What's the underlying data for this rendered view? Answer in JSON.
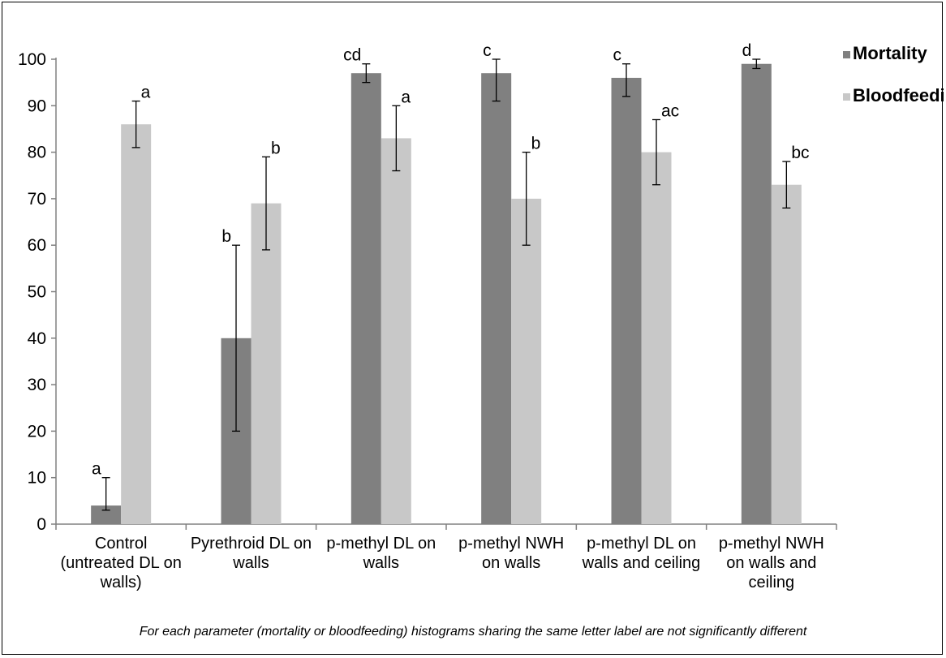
{
  "chart_data": {
    "type": "bar",
    "title": "",
    "xlabel": "",
    "ylabel": "",
    "ylim": [
      0,
      100
    ],
    "yticks": [
      0,
      10,
      20,
      30,
      40,
      50,
      60,
      70,
      80,
      90,
      100
    ],
    "grid": false,
    "legend_position": "top-right",
    "categories": [
      [
        "Control",
        "(untreated DL on",
        "walls)"
      ],
      [
        "Pyrethroid DL on",
        "walls"
      ],
      [
        "p-methyl  DL  on",
        "walls"
      ],
      [
        "p-methyl NWH",
        "on walls"
      ],
      [
        "p-methyl DL on",
        "walls and ceiling"
      ],
      [
        "p-methyl NWH",
        "on walls and",
        "ceiling"
      ]
    ],
    "series": [
      {
        "name": "Mortality",
        "color": "#808080",
        "values": [
          4,
          40,
          97,
          97,
          96,
          99
        ],
        "err_low": [
          3,
          20,
          95,
          91,
          92,
          98
        ],
        "err_high": [
          10,
          60,
          99,
          100,
          99,
          100
        ],
        "labels": [
          "a",
          "b",
          "cd",
          "c",
          "c",
          "d"
        ]
      },
      {
        "name": "Bloodfeeding",
        "color": "#c8c8c8",
        "values": [
          86,
          69,
          83,
          70,
          80,
          73
        ],
        "err_low": [
          81,
          59,
          76,
          60,
          73,
          68
        ],
        "err_high": [
          91,
          79,
          90,
          80,
          87,
          78
        ],
        "labels": [
          "a",
          "b",
          "a",
          "b",
          "ac",
          "bc"
        ]
      }
    ],
    "footnote": "For each parameter  (mortality or  bloodfeeding) histograms sharing the same letter label are not significantly different"
  }
}
